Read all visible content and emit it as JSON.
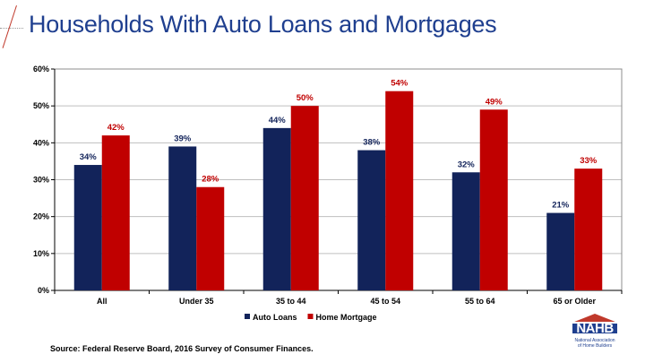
{
  "slide": {
    "title": "Households With Auto Loans and Mortgages",
    "source": "Source: Federal Reserve Board, 2016 Survey of Consumer Finances."
  },
  "logo": {
    "name": "NAHB",
    "line1": "National Association",
    "line2": "of Home Builders"
  },
  "chart_data": {
    "type": "bar",
    "title": "",
    "xlabel": "",
    "ylabel": "",
    "categories": [
      "All",
      "Under 35",
      "35 to 44",
      "45 to 54",
      "55 to 64",
      "65 or Older"
    ],
    "series": [
      {
        "name": "Auto Loans",
        "color": "#12235a",
        "values": [
          34,
          39,
          44,
          38,
          32,
          21
        ],
        "labels": [
          "34%",
          "39%",
          "44%",
          "38%",
          "32%",
          "21%"
        ],
        "label_color": "#12235a"
      },
      {
        "name": "Home Mortgage",
        "color": "#c00000",
        "values": [
          42,
          28,
          50,
          54,
          49,
          33
        ],
        "labels": [
          "42%",
          "28%",
          "50%",
          "54%",
          "49%",
          "33%"
        ],
        "label_color": "#c00000"
      }
    ],
    "ylim": [
      0,
      60
    ],
    "yticks": [
      0,
      10,
      20,
      30,
      40,
      50,
      60
    ],
    "ytick_labels": [
      "0%",
      "10%",
      "20%",
      "30%",
      "40%",
      "50%",
      "60%"
    ],
    "grid": true,
    "legend": "bottom-center"
  }
}
